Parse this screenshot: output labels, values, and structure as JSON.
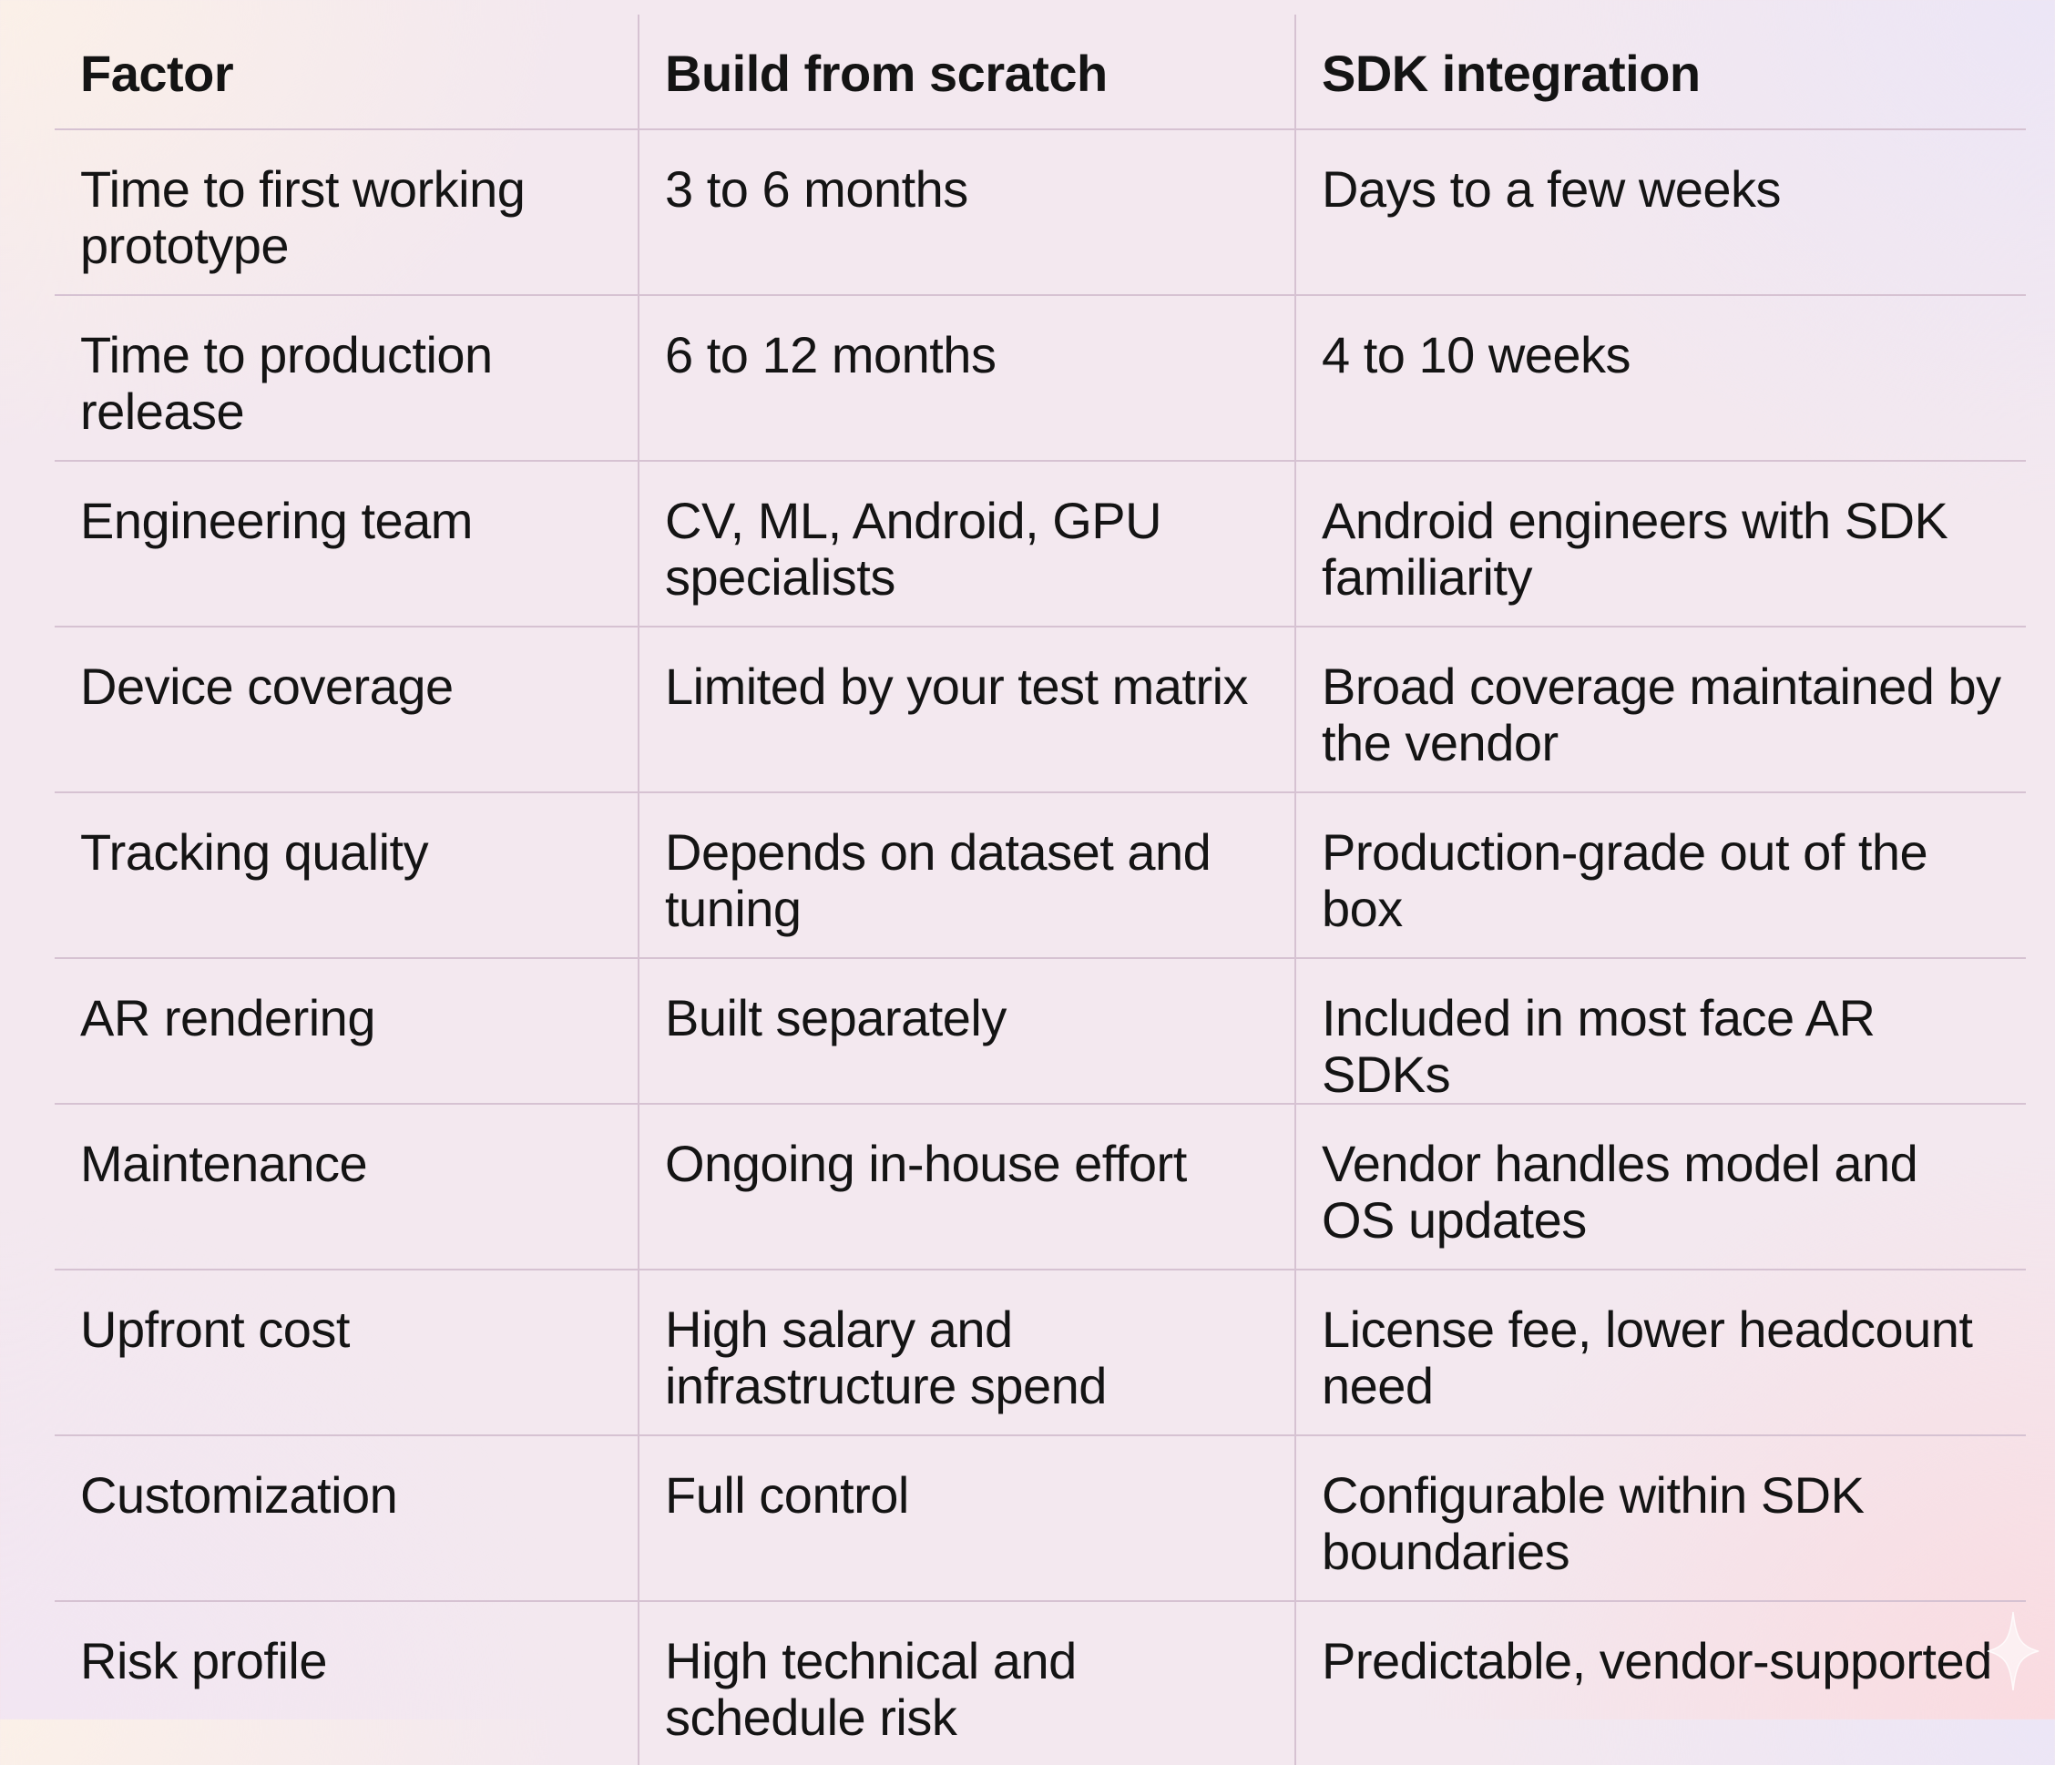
{
  "table": {
    "headers": [
      "Factor",
      "Build from scratch",
      "SDK integration"
    ],
    "rows": [
      [
        "Time to first working prototype",
        "3 to 6 months",
        "Days to a few weeks"
      ],
      [
        "Time to production release",
        "6 to 12 months",
        "4 to 10 weeks"
      ],
      [
        "Engineering team",
        "CV, ML, Android, GPU specialists",
        "Android engineers with SDK familiarity"
      ],
      [
        "Device coverage",
        "Limited by your test matrix",
        "Broad coverage maintained by the vendor"
      ],
      [
        "Tracking quality",
        "Depends on dataset and tuning",
        "Production-grade out of the box"
      ],
      [
        "AR rendering",
        "Built separately",
        "Included in most face AR SDKs"
      ],
      [
        "Maintenance",
        "Ongoing in-house effort",
        "Vendor handles model and OS updates"
      ],
      [
        "Upfront cost",
        "High salary and infrastructure spend",
        "License fee, lower headcount need"
      ],
      [
        "Customization",
        "Full control",
        "Configurable within SDK boundaries"
      ],
      [
        "Risk profile",
        "High technical and schedule risk",
        "Predictable, vendor-supported"
      ]
    ]
  },
  "icons": {
    "corner": "sparkle-icon"
  }
}
